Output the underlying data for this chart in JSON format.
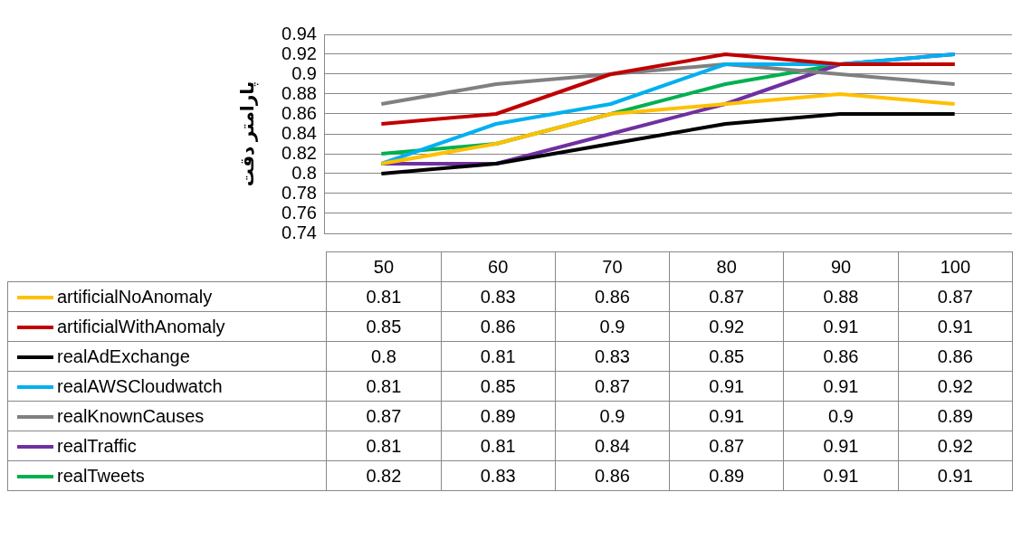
{
  "chart_data": {
    "type": "line",
    "ylabel": "پارامتر دقت",
    "categories": [
      "50",
      "60",
      "70",
      "80",
      "90",
      "100"
    ],
    "ylim": [
      0.74,
      0.94
    ],
    "yticks": [
      0.74,
      0.76,
      0.78,
      0.8,
      0.82,
      0.84,
      0.86,
      0.88,
      0.9,
      0.92,
      0.94
    ],
    "grid": "y",
    "legend": "bottom",
    "data_labels": true,
    "marker": "none",
    "series": [
      {
        "name": "artificialNoAnomaly",
        "color": "#ffc000",
        "values": [
          0.81,
          0.83,
          0.86,
          0.87,
          0.88,
          0.87
        ]
      },
      {
        "name": "artificialWithAnomaly",
        "color": "#c00000",
        "values": [
          0.85,
          0.86,
          0.9,
          0.92,
          0.91,
          0.91
        ]
      },
      {
        "name": "realAdExchange",
        "color": "#000000",
        "values": [
          0.8,
          0.81,
          0.83,
          0.85,
          0.86,
          0.86
        ]
      },
      {
        "name": "realAWSCloudwatch",
        "color": "#00b0f0",
        "values": [
          0.81,
          0.85,
          0.87,
          0.91,
          0.91,
          0.92
        ]
      },
      {
        "name": "realKnownCauses",
        "color": "#808080",
        "values": [
          0.87,
          0.89,
          0.9,
          0.91,
          0.9,
          0.89
        ]
      },
      {
        "name": "realTraffic",
        "color": "#7030a0",
        "values": [
          0.81,
          0.81,
          0.84,
          0.87,
          0.91,
          0.92
        ]
      },
      {
        "name": "realTweets",
        "color": "#00b050",
        "values": [
          0.82,
          0.83,
          0.86,
          0.89,
          0.91,
          0.91
        ]
      }
    ]
  }
}
